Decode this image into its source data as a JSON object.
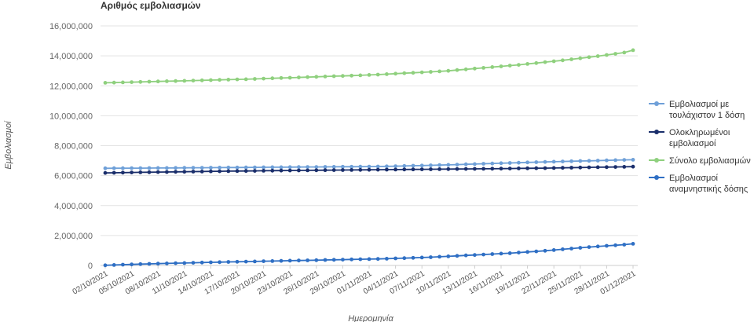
{
  "chart_data": {
    "type": "line",
    "title": "Αριθμός εμβολιασμών",
    "xlabel": "Ημερομηνία",
    "ylabel": "Εμβολιασμοί",
    "ylim": [
      0,
      16000000
    ],
    "yticks": [
      "0",
      "2,000,000",
      "4,000,000",
      "6,000,000",
      "8,000,000",
      "10,000,000",
      "12,000,000",
      "14,000,000",
      "16,000,000"
    ],
    "grid": true,
    "legend_position": "right",
    "x": [
      "02/10/2021",
      "03/10/2021",
      "04/10/2021",
      "05/10/2021",
      "06/10/2021",
      "07/10/2021",
      "08/10/2021",
      "09/10/2021",
      "10/10/2021",
      "11/10/2021",
      "12/10/2021",
      "13/10/2021",
      "14/10/2021",
      "15/10/2021",
      "16/10/2021",
      "17/10/2021",
      "18/10/2021",
      "19/10/2021",
      "20/10/2021",
      "21/10/2021",
      "22/10/2021",
      "23/10/2021",
      "24/10/2021",
      "25/10/2021",
      "26/10/2021",
      "27/10/2021",
      "28/10/2021",
      "29/10/2021",
      "30/10/2021",
      "31/10/2021",
      "01/11/2021",
      "02/11/2021",
      "03/11/2021",
      "04/11/2021",
      "05/11/2021",
      "06/11/2021",
      "07/11/2021",
      "08/11/2021",
      "09/11/2021",
      "10/11/2021",
      "11/11/2021",
      "12/11/2021",
      "13/11/2021",
      "14/11/2021",
      "15/11/2021",
      "16/11/2021",
      "17/11/2021",
      "18/11/2021",
      "19/11/2021",
      "20/11/2021",
      "21/11/2021",
      "22/11/2021",
      "23/11/2021",
      "24/11/2021",
      "25/11/2021",
      "26/11/2021",
      "27/11/2021",
      "28/11/2021",
      "29/11/2021",
      "30/11/2021",
      "01/12/2021"
    ],
    "x_tick_labels": [
      "02/10/2021",
      "05/10/2021",
      "08/10/2021",
      "11/10/2021",
      "14/10/2021",
      "17/10/2021",
      "20/10/2021",
      "23/10/2021",
      "26/10/2021",
      "29/10/2021",
      "01/11/2021",
      "04/11/2021",
      "07/11/2021",
      "10/11/2021",
      "13/11/2021",
      "16/11/2021",
      "19/11/2021",
      "22/11/2021",
      "25/11/2021",
      "28/11/2021",
      "01/12/2021"
    ],
    "series": [
      {
        "name": "Εμβολιασμοί με τουλάχιστον 1 δόση",
        "color": "#6fa0d8",
        "values": [
          6490000,
          6492000,
          6495000,
          6498000,
          6501000,
          6504000,
          6508000,
          6512000,
          6516000,
          6520000,
          6524000,
          6528000,
          6532000,
          6536000,
          6540000,
          6544000,
          6548000,
          6552000,
          6556000,
          6560000,
          6564000,
          6568000,
          6572000,
          6576000,
          6580000,
          6584000,
          6588000,
          6592000,
          6596000,
          6600000,
          6605000,
          6610000,
          6620000,
          6630000,
          6645000,
          6660000,
          6675000,
          6690000,
          6705000,
          6720000,
          6738000,
          6756000,
          6774000,
          6792000,
          6810000,
          6828000,
          6846000,
          6864000,
          6882000,
          6900000,
          6915000,
          6930000,
          6945000,
          6960000,
          6975000,
          6990000,
          7005000,
          7020000,
          7035000,
          7050000,
          7060000
        ]
      },
      {
        "name": "Ολοκληρωμένοι εμβολιασμοί",
        "color": "#1a2e6b",
        "values": [
          6180000,
          6190000,
          6200000,
          6210000,
          6220000,
          6228000,
          6236000,
          6244000,
          6252000,
          6260000,
          6268000,
          6276000,
          6284000,
          6292000,
          6300000,
          6306000,
          6312000,
          6318000,
          6324000,
          6330000,
          6336000,
          6342000,
          6348000,
          6354000,
          6360000,
          6365000,
          6370000,
          6375000,
          6380000,
          6385000,
          6390000,
          6395000,
          6400000,
          6405000,
          6410000,
          6415000,
          6420000,
          6425000,
          6430000,
          6435000,
          6440000,
          6446000,
          6452000,
          6458000,
          6464000,
          6470000,
          6476000,
          6482000,
          6488000,
          6494000,
          6500000,
          6510000,
          6520000,
          6530000,
          6540000,
          6550000,
          6560000,
          6570000,
          6580000,
          6590000,
          6600000
        ]
      },
      {
        "name": "Σύνολο εμβολιασμών",
        "color": "#8fd07e",
        "values": [
          12200000,
          12215000,
          12230000,
          12245000,
          12260000,
          12275000,
          12290000,
          12305000,
          12320000,
          12335000,
          12350000,
          12365000,
          12380000,
          12395000,
          12410000,
          12425000,
          12440000,
          12460000,
          12480000,
          12500000,
          12520000,
          12540000,
          12560000,
          12580000,
          12600000,
          12620000,
          12640000,
          12660000,
          12680000,
          12700000,
          12725000,
          12750000,
          12780000,
          12810000,
          12840000,
          12870000,
          12900000,
          12930000,
          12960000,
          13000000,
          13050000,
          13100000,
          13150000,
          13200000,
          13250000,
          13300000,
          13350000,
          13400000,
          13460000,
          13520000,
          13580000,
          13640000,
          13700000,
          13770000,
          13840000,
          13910000,
          13980000,
          14060000,
          14140000,
          14220000,
          14380000
        ]
      },
      {
        "name": "Εμβολιασμοί αναμνηστικής δόσης",
        "color": "#2f6fc4",
        "values": [
          10000,
          30000,
          50000,
          70000,
          90000,
          105000,
          120000,
          135000,
          150000,
          165000,
          180000,
          195000,
          210000,
          222000,
          234000,
          246000,
          258000,
          270000,
          282000,
          294000,
          306000,
          318000,
          330000,
          342000,
          354000,
          366000,
          378000,
          390000,
          402000,
          414000,
          426000,
          438000,
          450000,
          470000,
          490000,
          510000,
          530000,
          550000,
          580000,
          610000,
          640000,
          670000,
          700000,
          730000,
          760000,
          790000,
          820000,
          860000,
          900000,
          940000,
          980000,
          1030000,
          1080000,
          1130000,
          1180000,
          1230000,
          1270000,
          1310000,
          1350000,
          1390000,
          1450000
        ]
      }
    ]
  }
}
